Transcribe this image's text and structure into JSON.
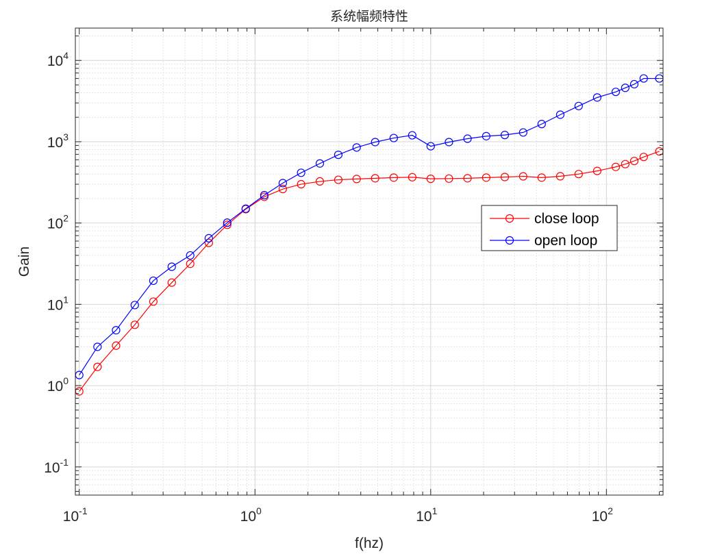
{
  "chart_data": {
    "type": "line",
    "title": "系统幅频特性",
    "xlabel": "f(hz)",
    "ylabel": "Gain",
    "xscale": "log",
    "yscale": "log",
    "xlim": [
      0.095,
      210
    ],
    "ylim": [
      0.045,
      25000
    ],
    "grid": true,
    "minor_grid": true,
    "legend_position": "center-right",
    "x_ticks": [
      {
        "base": "10",
        "exp": "-1"
      },
      {
        "base": "10",
        "exp": "0"
      },
      {
        "base": "10",
        "exp": "1"
      },
      {
        "base": "10",
        "exp": "2"
      }
    ],
    "y_ticks": [
      {
        "base": "10",
        "exp": "-1"
      },
      {
        "base": "10",
        "exp": "0"
      },
      {
        "base": "10",
        "exp": "1"
      },
      {
        "base": "10",
        "exp": "2"
      },
      {
        "base": "10",
        "exp": "3"
      },
      {
        "base": "10",
        "exp": "4"
      }
    ],
    "x": [
      0.1,
      0.127,
      0.162,
      0.207,
      0.264,
      0.336,
      0.428,
      0.546,
      0.695,
      0.886,
      1.13,
      1.44,
      1.83,
      2.34,
      2.98,
      3.79,
      4.83,
      6.16,
      7.85,
      10.0,
      12.7,
      16.2,
      20.7,
      26.4,
      33.6,
      42.8,
      54.6,
      69.5,
      88.6,
      113,
      128,
      144,
      163,
      200
    ],
    "series": [
      {
        "name": "close loop",
        "color": "#ff0000",
        "marker": "circle",
        "values": [
          0.85,
          1.7,
          3.1,
          5.6,
          10.8,
          18.5,
          31.5,
          57,
          95,
          148,
          210,
          262,
          300,
          325,
          340,
          348,
          355,
          362,
          366,
          350,
          352,
          355,
          362,
          368,
          375,
          362,
          376,
          400,
          437,
          490,
          530,
          580,
          650,
          760
        ]
      },
      {
        "name": "open loop",
        "color": "#0000ff",
        "marker": "circle",
        "values": [
          1.35,
          3.0,
          4.8,
          9.8,
          19.5,
          29,
          40,
          65,
          101,
          150,
          220,
          310,
          415,
          540,
          690,
          850,
          990,
          1110,
          1200,
          880,
          990,
          1090,
          1170,
          1210,
          1300,
          1650,
          2150,
          2750,
          3500,
          4100,
          4600,
          5100,
          6000,
          6000
        ]
      }
    ]
  }
}
